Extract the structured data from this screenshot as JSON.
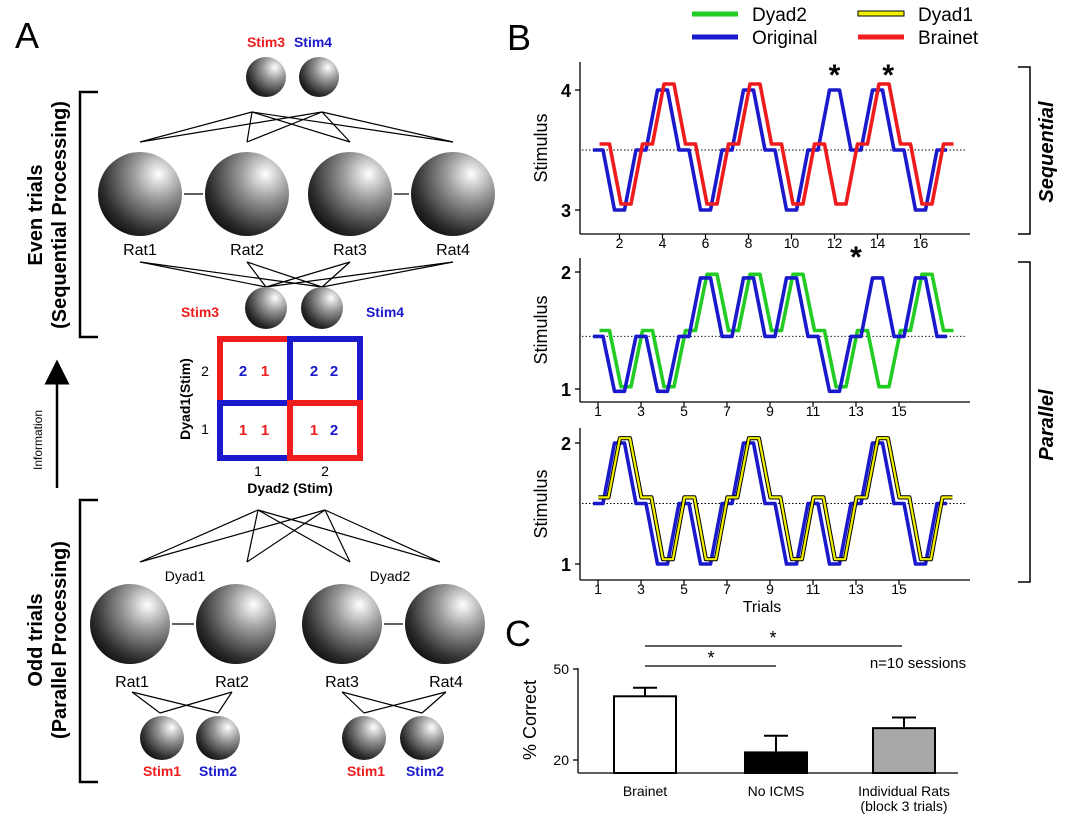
{
  "panel_a": {
    "label": "A",
    "top_stimuli": {
      "stim3": "Stim3",
      "stim4": "Stim4"
    },
    "even_rats": [
      "Rat1",
      "Rat2",
      "Rat3",
      "Rat4"
    ],
    "mid_stimuli": {
      "stim3": "Stim3",
      "stim4": "Stim4"
    },
    "even_group_label_1": "Even trials",
    "even_group_label_2": "(Sequential Processing)",
    "odd_group_label_1": "Odd trials",
    "odd_group_label_2": "(Parallel Processing)",
    "info_label": "Information",
    "matrix": {
      "ylabel": "Dyad1(Stim)",
      "xlabel": "Dyad2 (Stim)",
      "row_ticks": [
        "2",
        "1"
      ],
      "col_ticks": [
        "1",
        "2"
      ],
      "cells": [
        {
          "a": "2",
          "b": "1",
          "a_color": "#1a1aff",
          "b_color": "#ff1a1a",
          "border": "#ff1a1a"
        },
        {
          "a": "2",
          "b": "2",
          "a_color": "#1a1aff",
          "b_color": "#1a1aff",
          "border": "#1a1aff"
        },
        {
          "a": "1",
          "b": "1",
          "a_color": "#ff1a1a",
          "b_color": "#ff1a1a",
          "border": "#1a1aff"
        },
        {
          "a": "1",
          "b": "2",
          "a_color": "#ff1a1a",
          "b_color": "#1a1aff",
          "border": "#ff1a1a"
        }
      ]
    },
    "dyads": [
      "Dyad1",
      "Dyad2"
    ],
    "odd_rats": [
      "Rat1",
      "Rat2",
      "Rat3",
      "Rat4"
    ],
    "bottom_stimuli": [
      "Stim1",
      "Stim2",
      "Stim1",
      "Stim2"
    ]
  },
  "panel_b": {
    "label": "B",
    "legend": [
      {
        "name": "Dyad2",
        "color": "#22cc22"
      },
      {
        "name": "Dyad1",
        "color": "#e6e600"
      },
      {
        "name": "Original",
        "color": "#1a1acc"
      },
      {
        "name": "Brainet",
        "color": "#ee1c1c"
      }
    ],
    "sequential_label": "Sequential",
    "parallel_label": "Parallel",
    "xlabel": "Trials"
  },
  "panel_c": {
    "label": "C",
    "annotation": "n=10 sessions",
    "sig_marks": [
      "*",
      "*"
    ]
  },
  "colors": {
    "red": "#ee1c1c",
    "blue": "#1a1acc",
    "green": "#22cc22",
    "yellow": "#f2f200",
    "bar_gray": "#a8a8a8"
  },
  "chart_data": [
    {
      "type": "line",
      "ylabel": "Stimulus",
      "yticks": [
        "4",
        "3"
      ],
      "ylim": [
        3,
        4
      ],
      "threshold": 3.5,
      "xticks": [
        "2",
        "4",
        "6",
        "8",
        "10",
        "12",
        "14",
        "16"
      ],
      "x": [
        1,
        2,
        3,
        4,
        5,
        6,
        7,
        8,
        9,
        10,
        11,
        12,
        13,
        14,
        15,
        16,
        17
      ],
      "series": [
        {
          "name": "Original",
          "color": "#1a1acc",
          "offset": 0,
          "values": [
            3.5,
            3,
            3.5,
            4,
            3.5,
            3,
            3.5,
            4,
            3.5,
            3,
            3.5,
            4,
            3.5,
            4,
            3.5,
            3,
            3.5
          ]
        },
        {
          "name": "Brainet",
          "color": "#ee1c1c",
          "offset": 0.3,
          "values": [
            3.55,
            3.05,
            3.55,
            4.05,
            3.55,
            3.05,
            3.55,
            4.05,
            3.55,
            3.05,
            3.55,
            3.05,
            3.55,
            4.05,
            3.55,
            3.05,
            3.55
          ]
        }
      ],
      "stars": [
        12,
        14.5
      ],
      "star_text": "*"
    },
    {
      "type": "line",
      "ylabel": "Stimulus",
      "yticks": [
        "2",
        "1"
      ],
      "ylim": [
        1,
        2
      ],
      "threshold": 1.45,
      "xticks": [
        "1",
        "3",
        "5",
        "7",
        "9",
        "11",
        "13",
        "15"
      ],
      "x": [
        1,
        2,
        3,
        4,
        5,
        6,
        7,
        8,
        9,
        10,
        11,
        12,
        13,
        14,
        15,
        16,
        17
      ],
      "series": [
        {
          "name": "Dyad2",
          "color": "#22cc22",
          "offset": 0.3,
          "values": [
            1.5,
            1.02,
            1.5,
            1.02,
            1.5,
            1.98,
            1.5,
            1.98,
            1.5,
            1.98,
            1.5,
            1.02,
            1.5,
            1.02,
            1.5,
            1.98,
            1.5
          ]
        },
        {
          "name": "Original",
          "color": "#1a1acc",
          "offset": 0,
          "values": [
            1.45,
            0.98,
            1.45,
            0.98,
            1.45,
            1.95,
            1.45,
            1.95,
            1.45,
            1.95,
            1.45,
            0.98,
            1.45,
            1.95,
            1.45,
            1.95,
            1.45
          ]
        }
      ],
      "stars": [
        13
      ],
      "star_text": "*"
    },
    {
      "type": "line",
      "ylabel": "Stimulus",
      "yticks": [
        "2",
        "1"
      ],
      "ylim": [
        1,
        2
      ],
      "threshold": 1.5,
      "xticks": [
        "1",
        "3",
        "5",
        "7",
        "9",
        "11",
        "13",
        "15"
      ],
      "x": [
        1,
        2,
        3,
        4,
        5,
        6,
        7,
        8,
        9,
        10,
        11,
        12,
        13,
        14,
        15,
        16,
        17
      ],
      "series": [
        {
          "name": "Original",
          "color": "#1a1acc",
          "offset": 0,
          "values": [
            1.5,
            2,
            1.5,
            1,
            1.5,
            1,
            1.5,
            2,
            1.5,
            1,
            1.5,
            1,
            1.5,
            2,
            1.5,
            1,
            1.5
          ]
        },
        {
          "name": "Dyad1",
          "color": "#f2f200",
          "offset": 0.25,
          "values": [
            1.55,
            2.04,
            1.55,
            1.04,
            1.55,
            1.04,
            1.55,
            2.04,
            1.55,
            1.04,
            1.55,
            1.04,
            1.55,
            2.04,
            1.55,
            1.04,
            1.55
          ]
        }
      ],
      "stars": [],
      "star_text": "*"
    },
    {
      "type": "bar",
      "ylabel": "% Correct",
      "ylim": [
        20,
        50
      ],
      "yticks": [
        "50",
        "20"
      ],
      "categories": [
        "Brainet",
        "No ICMS",
        "Individual Rats\n(block 3 trials)"
      ],
      "values": [
        41,
        22.5,
        30.5
      ],
      "errors": [
        2.8,
        5.5,
        3.5
      ],
      "fills": [
        "#ffffff",
        "#000000",
        "#a8a8a8"
      ]
    }
  ]
}
